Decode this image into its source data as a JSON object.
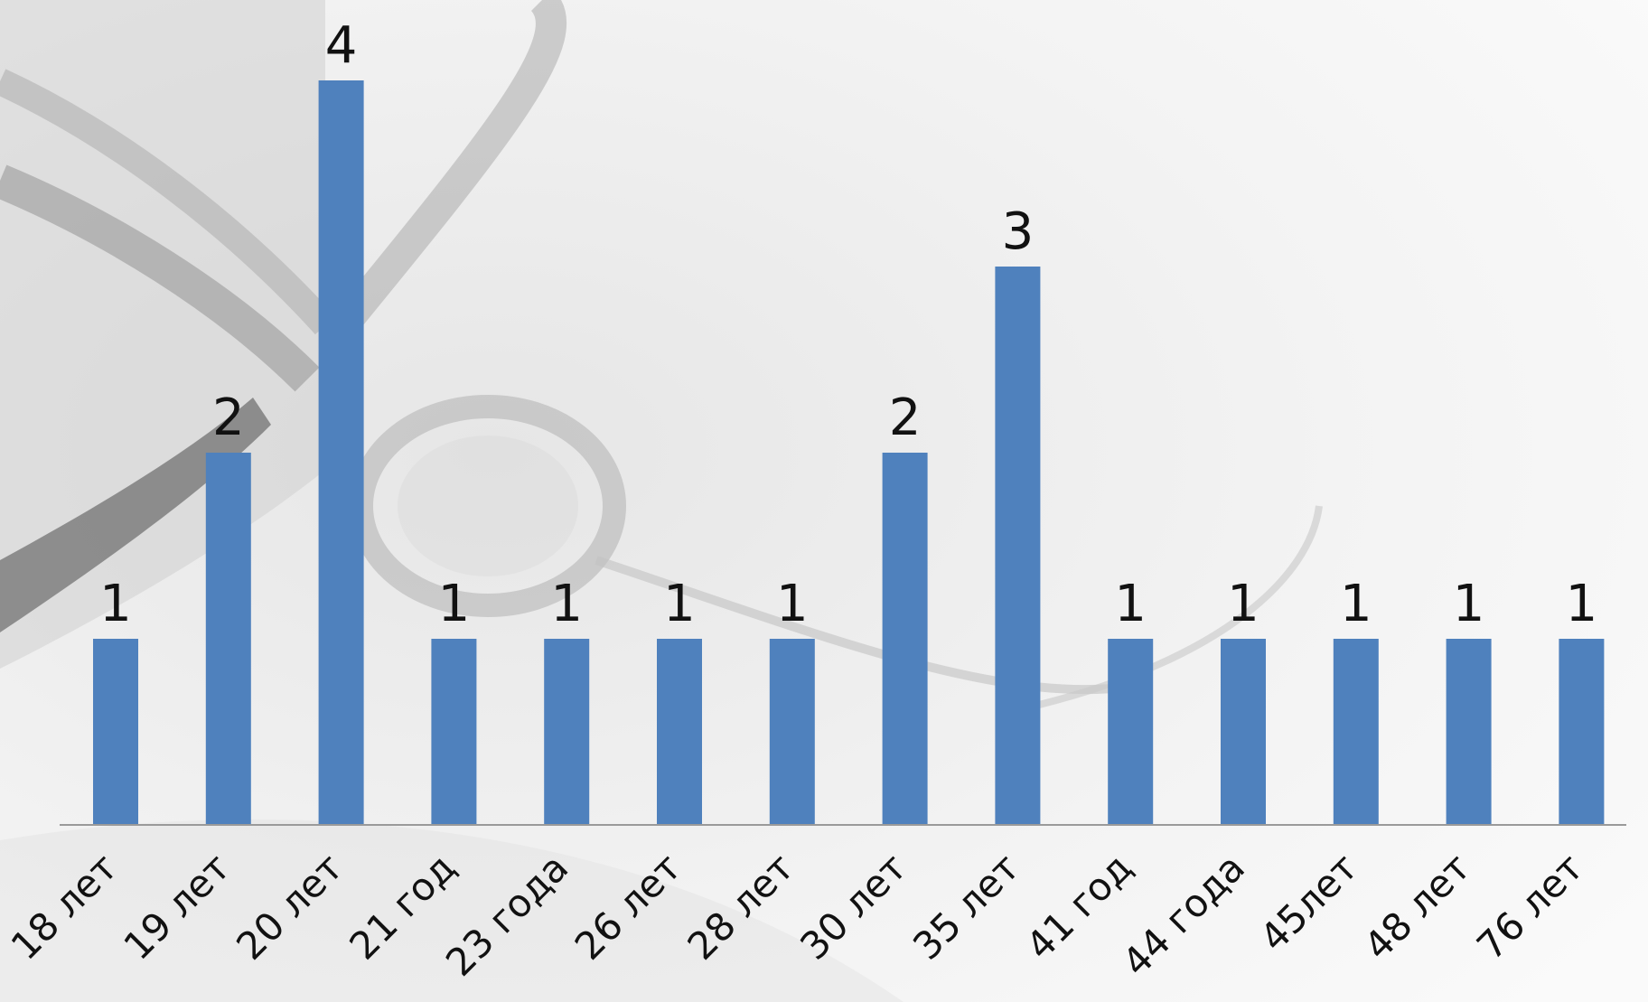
{
  "chart_data": {
    "type": "bar",
    "categories": [
      "18 лет",
      "19 лет",
      "20 лет",
      "21 год",
      "23 года",
      "26 лет",
      "28 лет",
      "30 лет",
      "35 лет",
      "41 год",
      "44 года",
      "45лет",
      "48 лет",
      "76 лет"
    ],
    "values": [
      1,
      2,
      4,
      1,
      1,
      1,
      1,
      2,
      3,
      1,
      1,
      1,
      1,
      1
    ],
    "ylim": [
      0,
      4
    ],
    "grid": false,
    "legend": "none",
    "data_labels": true,
    "bar_color": "#4f81bd"
  }
}
